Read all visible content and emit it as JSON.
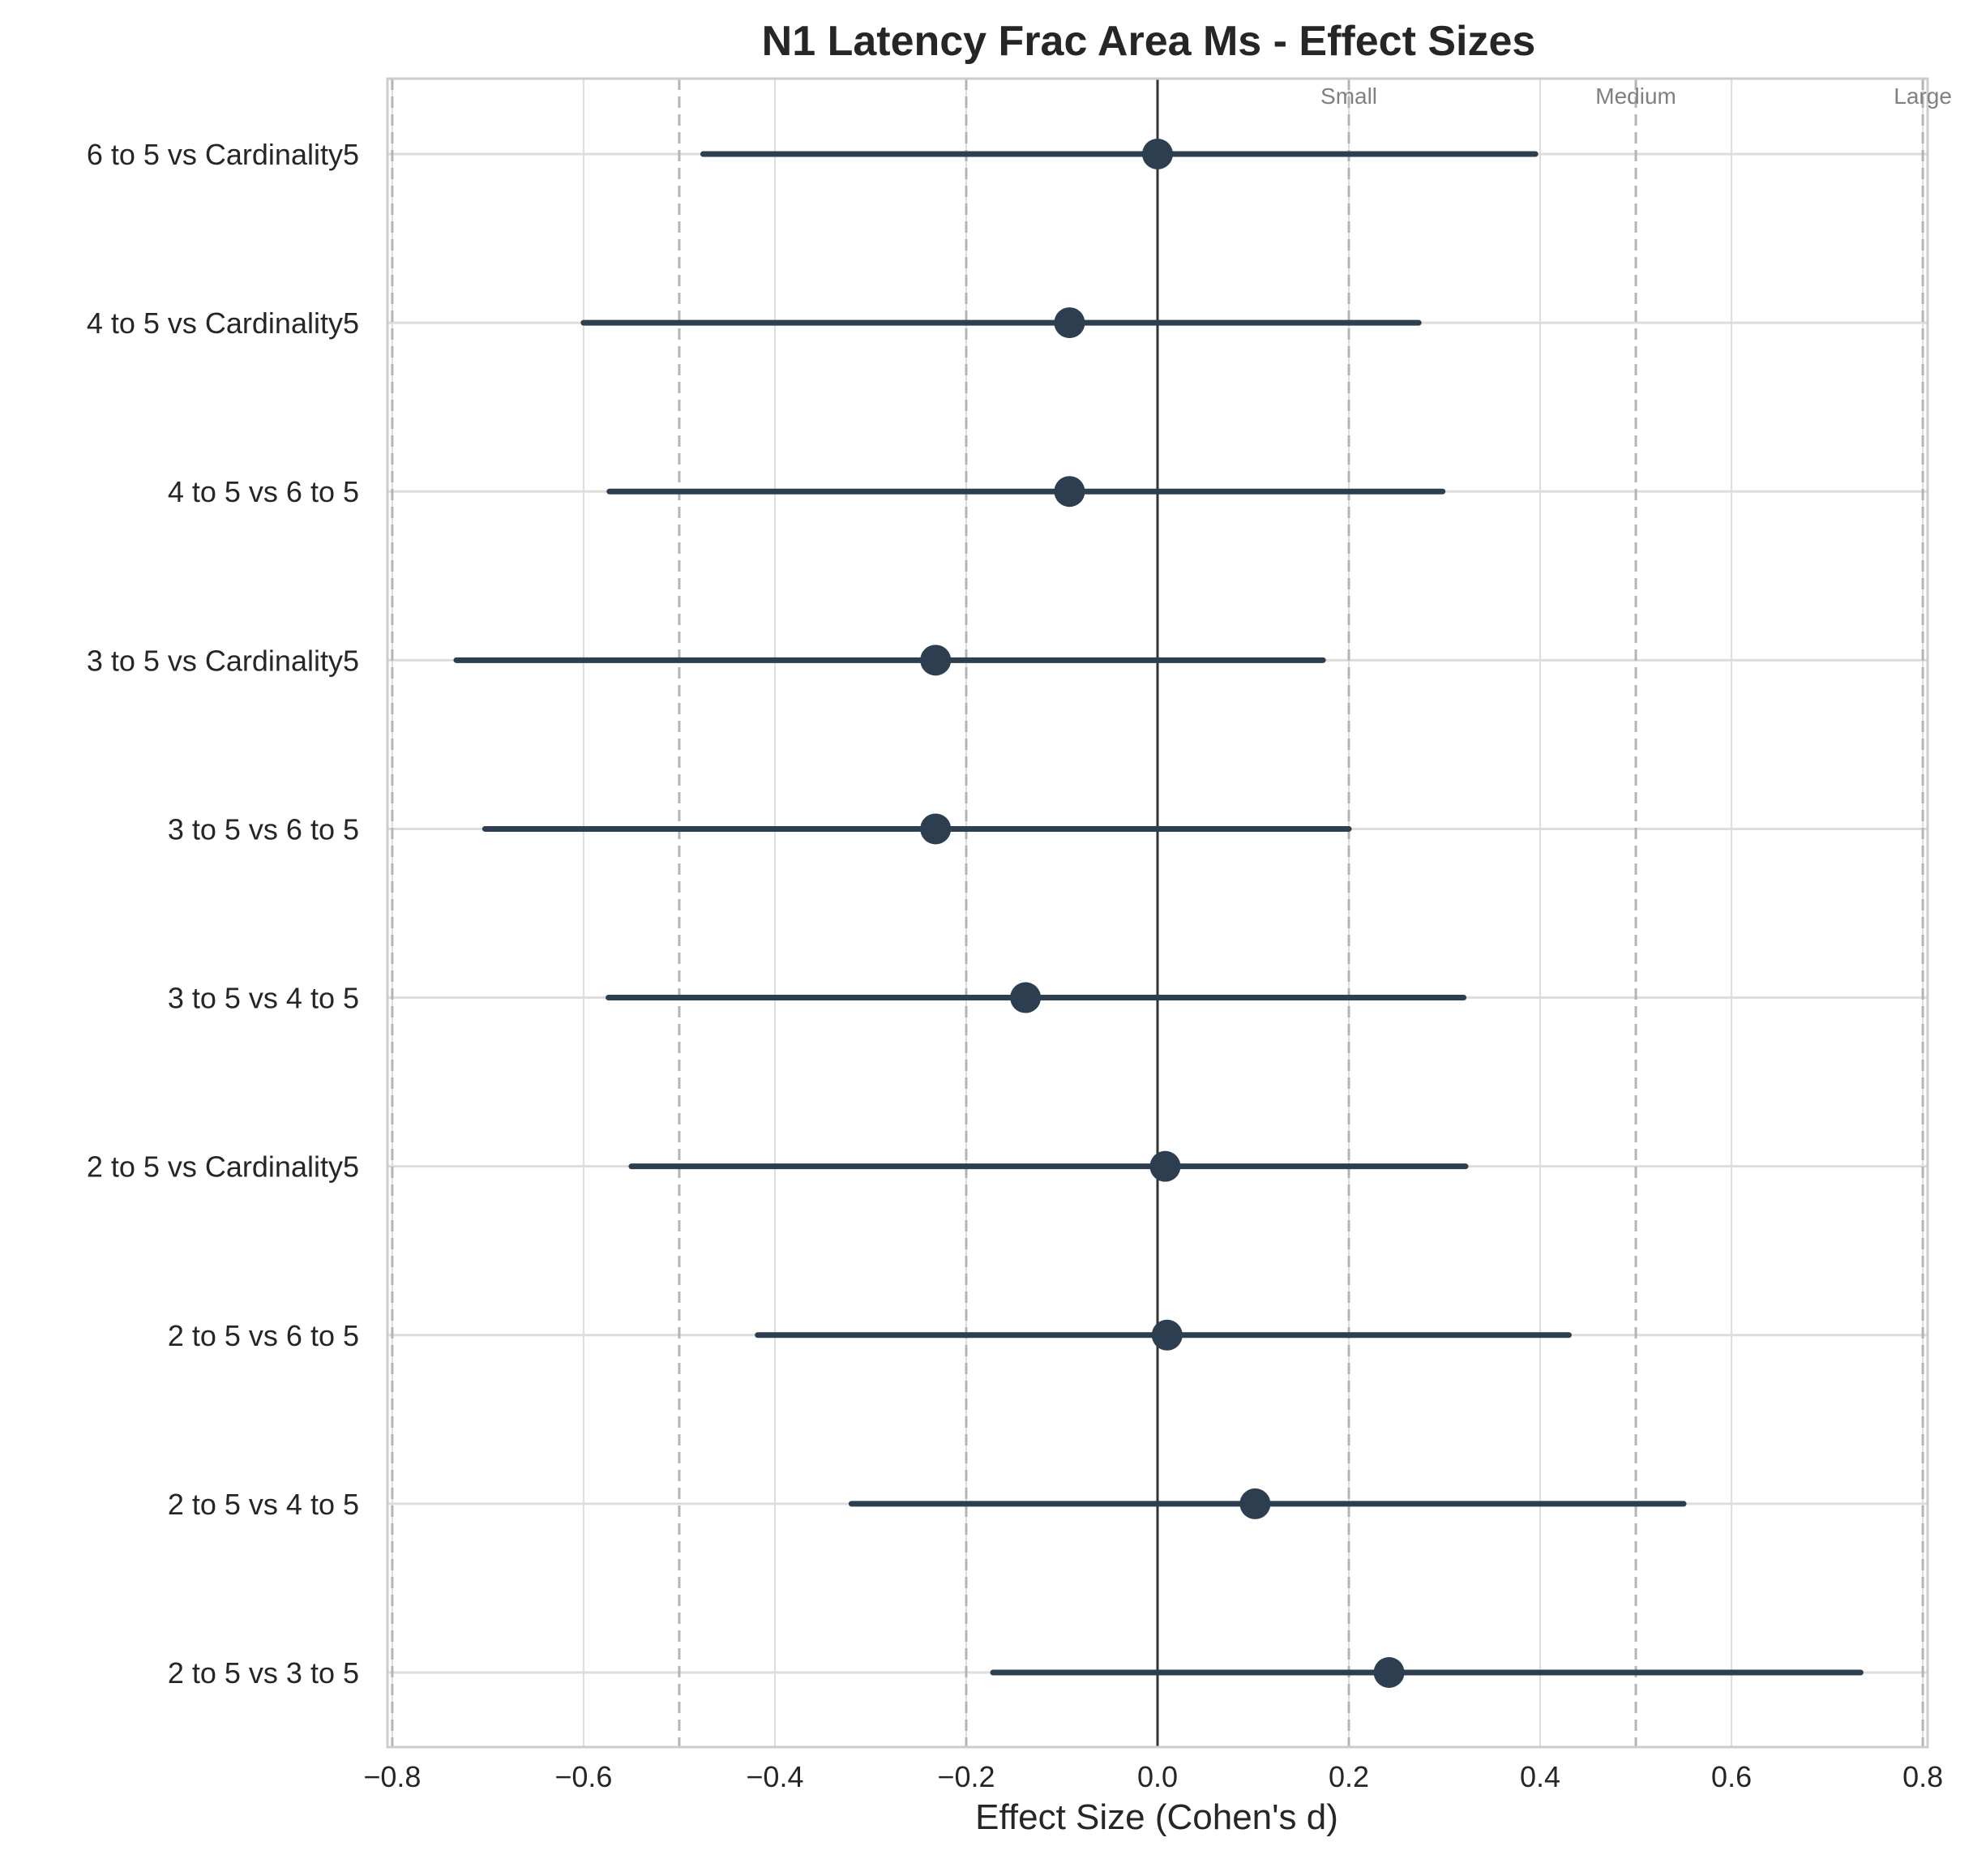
{
  "chart_data": {
    "type": "forest",
    "title": "N1 Latency Frac Area Ms - Effect Sizes",
    "xlabel": "Effect Size (Cohen's d)",
    "ylabel": "",
    "xlim": [
      -0.805,
      0.805
    ],
    "xticks": [
      -0.8,
      -0.6,
      -0.4,
      -0.2,
      0.0,
      0.2,
      0.4,
      0.6,
      0.8
    ],
    "xtick_labels": [
      "−0.8",
      "−0.6",
      "−0.4",
      "−0.2",
      "0.0",
      "0.2",
      "0.4",
      "0.6",
      "0.8"
    ],
    "grid": true,
    "zero_line": 0.0,
    "reference_lines": [
      {
        "value": -0.8,
        "label": ""
      },
      {
        "value": -0.5,
        "label": ""
      },
      {
        "value": -0.2,
        "label": ""
      },
      {
        "value": 0.2,
        "label": "Small"
      },
      {
        "value": 0.5,
        "label": "Medium"
      },
      {
        "value": 0.8,
        "label": "Large"
      }
    ],
    "comparisons": [
      {
        "label": "6 to 5 vs Cardinality5",
        "d": 0.0,
        "ci_low": -0.475,
        "ci_high": 0.395
      },
      {
        "label": "4 to 5 vs Cardinality5",
        "d": -0.092,
        "ci_low": -0.6,
        "ci_high": 0.273
      },
      {
        "label": "4 to 5 vs 6 to 5",
        "d": -0.092,
        "ci_low": -0.573,
        "ci_high": 0.298
      },
      {
        "label": "3 to 5 vs Cardinality5",
        "d": -0.232,
        "ci_low": -0.733,
        "ci_high": 0.173
      },
      {
        "label": "3 to 5 vs 6 to 5",
        "d": -0.232,
        "ci_low": -0.703,
        "ci_high": 0.2
      },
      {
        "label": "3 to 5 vs 4 to 5",
        "d": -0.138,
        "ci_low": -0.574,
        "ci_high": 0.32
      },
      {
        "label": "2 to 5 vs Cardinality5",
        "d": 0.008,
        "ci_low": -0.55,
        "ci_high": 0.322
      },
      {
        "label": "2 to 5 vs 6 to 5",
        "d": 0.01,
        "ci_low": -0.418,
        "ci_high": 0.43
      },
      {
        "label": "2 to 5 vs 4 to 5",
        "d": 0.102,
        "ci_low": -0.32,
        "ci_high": 0.55
      },
      {
        "label": "2 to 5 vs 3 to 5",
        "d": 0.242,
        "ci_low": -0.172,
        "ci_high": 0.735
      }
    ],
    "colors": {
      "marker": "#2c3e50",
      "zero_line": "#333333",
      "reference_line": "#b4b4b4",
      "grid": "#dddddd",
      "frame": "#cccccc"
    }
  }
}
